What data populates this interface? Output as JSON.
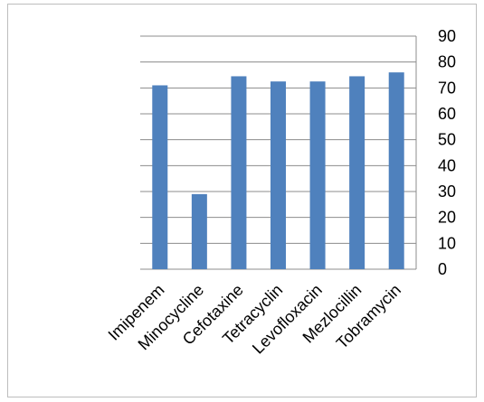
{
  "chart_data": {
    "type": "bar",
    "categories": [
      "Imipenem",
      "Minocycline",
      "Cefotaxine",
      "Tetracyclin",
      "Levofloxacin",
      "Mezlocillin",
      "Tobramycin"
    ],
    "values": [
      71,
      29,
      74.5,
      72.5,
      72.5,
      74.5,
      76
    ],
    "title": "",
    "xlabel": "",
    "ylabel": "",
    "ylim": [
      0,
      90
    ],
    "yticks": [
      "0",
      "10",
      "20",
      "30",
      "40",
      "50",
      "60",
      "70",
      "80",
      "90"
    ],
    "y_axis_side": "right",
    "grid": true,
    "bar_color": "#4f81bd"
  }
}
